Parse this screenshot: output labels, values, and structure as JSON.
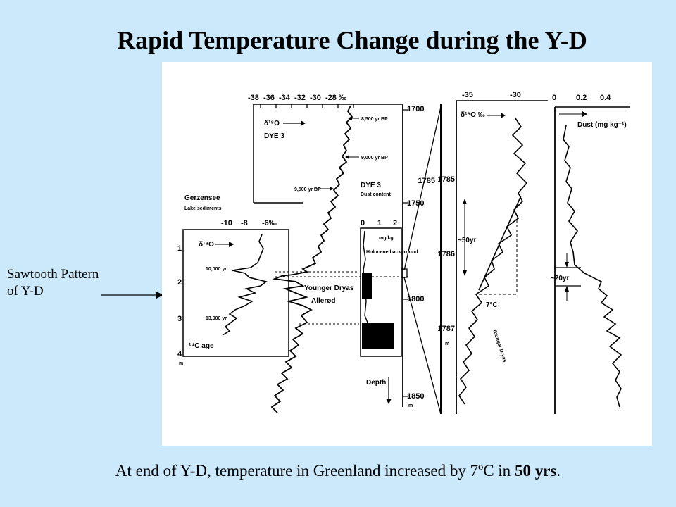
{
  "title": "Rapid Temperature Change during the Y-D",
  "side_label": {
    "line1": "Sawtooth Pattern",
    "line2": "of Y-D"
  },
  "caption": {
    "prefix": "At end of Y-D, temperature in Greenland increased by 7ºC in ",
    "bold": "50 yrs",
    "suffix": "."
  },
  "figure": {
    "top_axis_ticks": [
      "-38",
      "-36",
      "-34",
      "-32",
      "-30",
      "-28 ‰"
    ],
    "dye3_d18o": "δ¹⁸O",
    "dye3_label": "DYE 3",
    "age_markers": [
      "8,500 yr BP",
      "9,000 yr BP",
      "9,500 yr BP"
    ],
    "gerzensee_title": "Gerzensee",
    "gerzensee_sub": "Lake sediments",
    "gerz_ticks": [
      "-10",
      "-8",
      "-6‰"
    ],
    "gerz_d18o": "δ¹⁸O",
    "gerz_depth_ticks": [
      "1",
      "2",
      "3",
      "4"
    ],
    "gerz_depth_unit": "m",
    "gerz_ages": [
      "10,000 yr",
      "13,000 yr"
    ],
    "c14_age": "¹⁴C age",
    "younger_dryas": "Younger Dryas",
    "allerod": "Allerød",
    "dust_title1": "DYE 3",
    "dust_title2": "Dust content",
    "dust_ticks": [
      "0",
      "1",
      "2"
    ],
    "dust_unit": "mg/kg",
    "holocene": "Holocene background",
    "depth_ticks": [
      "1700",
      "1750",
      "1800",
      "1850"
    ],
    "depth_unit": "m",
    "depth_label": "Depth",
    "mid_top_ticks": [
      "-35",
      "-30"
    ],
    "mid_d18o": "δ¹⁸O ‰",
    "mid_depth_ticks": [
      "1785",
      "1786",
      "1787"
    ],
    "mid_depth_unit": "m",
    "fifty_yr": "~50yr",
    "seven_c": "7°C",
    "mid_yd": "Younger Dryas",
    "right_ticks": [
      "0",
      "0.2",
      "0.4"
    ],
    "right_dust": "Dust (mg kg⁻¹)",
    "twenty_yr": "~20yr"
  }
}
